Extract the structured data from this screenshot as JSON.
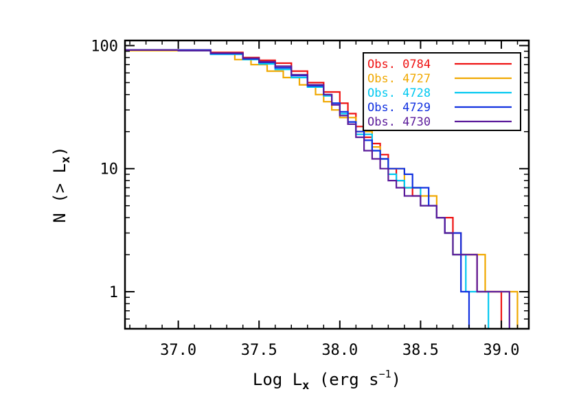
{
  "chart_data": {
    "type": "line",
    "subtype": "cumulative step (luminosity function)",
    "title": "",
    "xlabel": {
      "main": "Log L",
      "sub": "x",
      "rest": " (erg s",
      "sup": "−1",
      "close": ")"
    },
    "ylabel": {
      "main": "N (> L",
      "sub": "x",
      "close": ")"
    },
    "xlim": [
      36.67,
      39.17
    ],
    "ylim": [
      0.5,
      110
    ],
    "yscale": "log",
    "x_ticks": [
      {
        "value": 37.0,
        "label": "37.0"
      },
      {
        "value": 37.5,
        "label": "37.5"
      },
      {
        "value": 38.0,
        "label": "38.0"
      },
      {
        "value": 38.5,
        "label": "38.5"
      },
      {
        "value": 39.0,
        "label": "39.0"
      }
    ],
    "y_ticks": [
      {
        "value": 1,
        "label": "1"
      },
      {
        "value": 10,
        "label": "10"
      },
      {
        "value": 100,
        "label": "100"
      }
    ],
    "legend_position": "top-right",
    "series": [
      {
        "name": "Obs. 0784",
        "color": "#ee1111",
        "points": [
          [
            36.67,
            92
          ],
          [
            37.0,
            92
          ],
          [
            37.2,
            88
          ],
          [
            37.4,
            80
          ],
          [
            37.5,
            76
          ],
          [
            37.6,
            72
          ],
          [
            37.7,
            62
          ],
          [
            37.8,
            50
          ],
          [
            37.9,
            42
          ],
          [
            38.0,
            34
          ],
          [
            38.05,
            28
          ],
          [
            38.1,
            22
          ],
          [
            38.15,
            18
          ],
          [
            38.2,
            16
          ],
          [
            38.25,
            13
          ],
          [
            38.3,
            10
          ],
          [
            38.35,
            8
          ],
          [
            38.4,
            7
          ],
          [
            38.45,
            6
          ],
          [
            38.5,
            5
          ],
          [
            38.55,
            5
          ],
          [
            38.6,
            4
          ],
          [
            38.7,
            3
          ],
          [
            38.75,
            2
          ],
          [
            38.85,
            1
          ],
          [
            39.0,
            1
          ],
          [
            39.0,
            0.5
          ]
        ]
      },
      {
        "name": "Obs. 4727",
        "color": "#f0a800",
        "points": [
          [
            36.67,
            91
          ],
          [
            37.0,
            91
          ],
          [
            37.2,
            86
          ],
          [
            37.35,
            77
          ],
          [
            37.45,
            70
          ],
          [
            37.55,
            62
          ],
          [
            37.65,
            55
          ],
          [
            37.75,
            48
          ],
          [
            37.85,
            40
          ],
          [
            37.9,
            35
          ],
          [
            37.95,
            30
          ],
          [
            38.0,
            26
          ],
          [
            38.1,
            20
          ],
          [
            38.2,
            15
          ],
          [
            38.25,
            12
          ],
          [
            38.3,
            10
          ],
          [
            38.4,
            7
          ],
          [
            38.5,
            6
          ],
          [
            38.6,
            4
          ],
          [
            38.65,
            3
          ],
          [
            38.7,
            2
          ],
          [
            38.9,
            1
          ],
          [
            39.1,
            1
          ],
          [
            39.1,
            0.5
          ]
        ]
      },
      {
        "name": "Obs. 4728",
        "color": "#00c8f0",
        "points": [
          [
            36.67,
            92
          ],
          [
            37.0,
            91
          ],
          [
            37.2,
            85
          ],
          [
            37.4,
            77
          ],
          [
            37.5,
            71
          ],
          [
            37.6,
            64
          ],
          [
            37.7,
            55
          ],
          [
            37.8,
            46
          ],
          [
            37.9,
            39
          ],
          [
            37.95,
            34
          ],
          [
            38.0,
            28
          ],
          [
            38.05,
            24
          ],
          [
            38.1,
            19
          ],
          [
            38.2,
            14
          ],
          [
            38.25,
            12
          ],
          [
            38.3,
            9
          ],
          [
            38.35,
            8
          ],
          [
            38.4,
            7
          ],
          [
            38.5,
            5
          ],
          [
            38.6,
            4
          ],
          [
            38.65,
            3
          ],
          [
            38.7,
            2
          ],
          [
            38.78,
            1
          ],
          [
            38.92,
            1
          ],
          [
            38.92,
            0.5
          ]
        ]
      },
      {
        "name": "Obs. 4729",
        "color": "#1030e0",
        "points": [
          [
            36.67,
            92
          ],
          [
            37.0,
            92
          ],
          [
            37.2,
            86
          ],
          [
            37.4,
            78
          ],
          [
            37.5,
            73
          ],
          [
            37.6,
            66
          ],
          [
            37.7,
            57
          ],
          [
            37.8,
            47
          ],
          [
            37.9,
            40
          ],
          [
            37.95,
            34
          ],
          [
            38.0,
            29
          ],
          [
            38.05,
            24
          ],
          [
            38.1,
            20
          ],
          [
            38.15,
            17
          ],
          [
            38.2,
            14
          ],
          [
            38.25,
            12
          ],
          [
            38.3,
            10
          ],
          [
            38.4,
            9
          ],
          [
            38.45,
            7
          ],
          [
            38.55,
            5
          ],
          [
            38.6,
            4
          ],
          [
            38.65,
            3
          ],
          [
            38.75,
            2
          ],
          [
            38.75,
            1
          ],
          [
            38.8,
            1
          ],
          [
            38.8,
            0.5
          ]
        ]
      },
      {
        "name": "Obs. 4730",
        "color": "#5a1a9a",
        "points": [
          [
            36.67,
            92
          ],
          [
            37.0,
            91
          ],
          [
            37.2,
            87
          ],
          [
            37.4,
            79
          ],
          [
            37.5,
            74
          ],
          [
            37.6,
            68
          ],
          [
            37.7,
            58
          ],
          [
            37.8,
            48
          ],
          [
            37.9,
            40
          ],
          [
            37.95,
            33
          ],
          [
            38.0,
            27
          ],
          [
            38.05,
            23
          ],
          [
            38.1,
            18
          ],
          [
            38.15,
            14
          ],
          [
            38.2,
            12
          ],
          [
            38.25,
            10
          ],
          [
            38.3,
            8
          ],
          [
            38.35,
            7
          ],
          [
            38.4,
            6
          ],
          [
            38.5,
            5
          ],
          [
            38.6,
            4
          ],
          [
            38.65,
            3
          ],
          [
            38.7,
            2
          ],
          [
            38.85,
            1
          ],
          [
            39.05,
            1
          ],
          [
            39.05,
            0.5
          ]
        ]
      }
    ]
  }
}
